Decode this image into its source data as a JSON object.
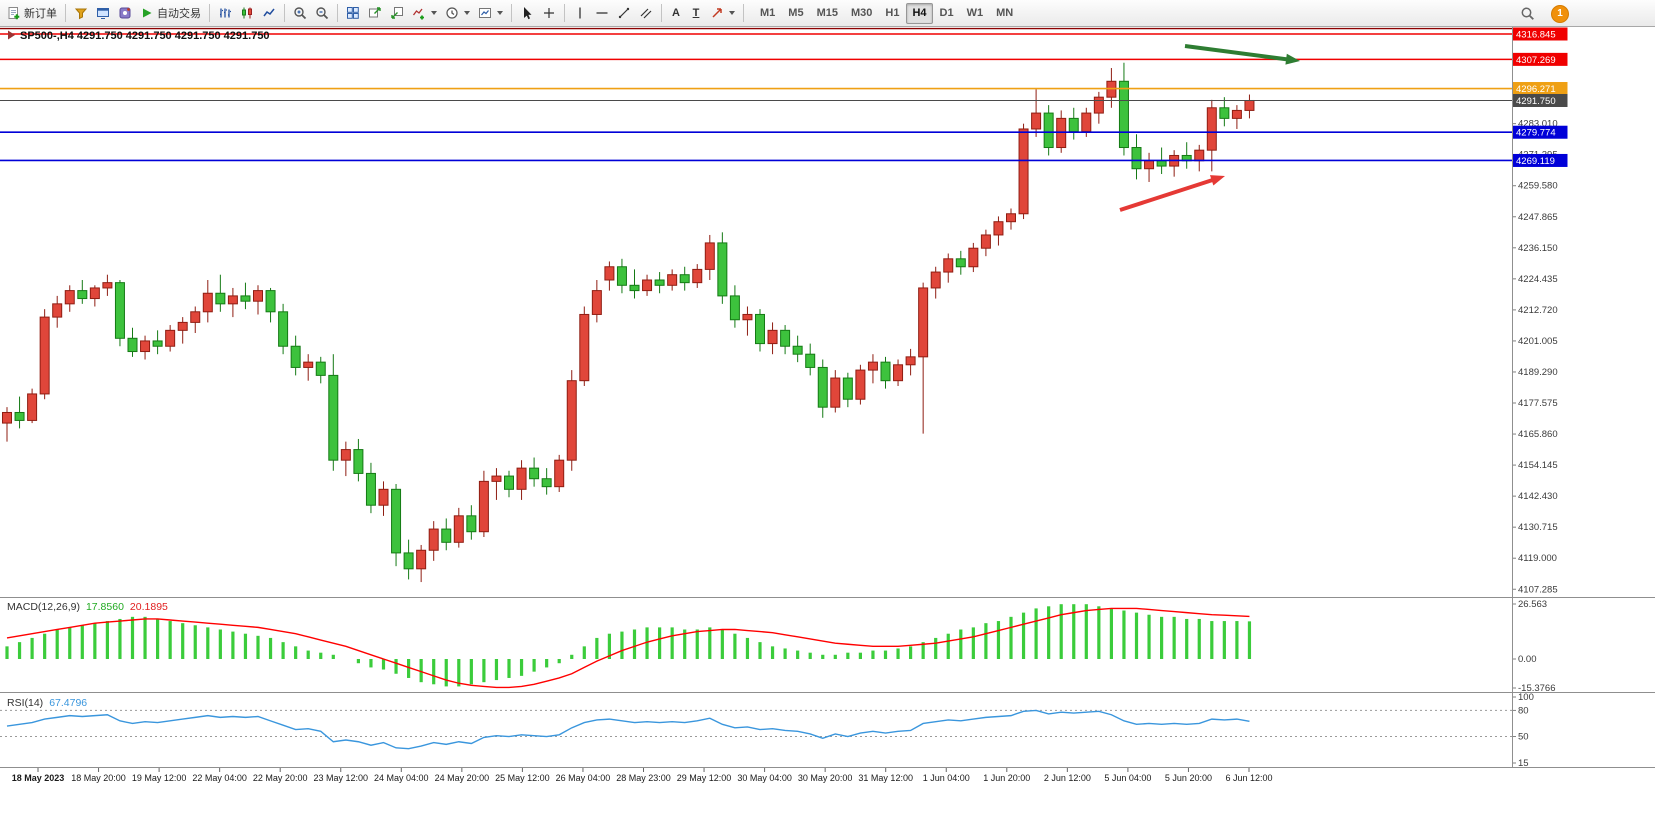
{
  "toolbar": {
    "new_order": "新订单",
    "autotrade": "自动交易",
    "timeframes": [
      "M1",
      "M5",
      "M15",
      "M30",
      "H1",
      "H4",
      "D1",
      "W1",
      "MN"
    ],
    "active_timeframe": "H4",
    "notification_count": "1",
    "icons": {
      "text_tool": "A",
      "label_tool": "T"
    }
  },
  "symbol_bar": {
    "text": "SP500-,H4 4291.750 4291.750 4291.750 4291.750"
  },
  "indicators": {
    "macd": {
      "label": "MACD(12,26,9)",
      "value_main": "17.8560",
      "value_signal": "20.1895"
    },
    "rsi": {
      "label": "RSI(14)",
      "value": "67.4796"
    }
  },
  "chart_data": {
    "type": "candlestick",
    "symbol": "SP500-",
    "timeframe": "H4",
    "ohlc_display": [
      "4291.750",
      "4291.750",
      "4291.750",
      "4291.750"
    ],
    "up_color": "#e0463a",
    "down_color": "#3dc23d",
    "price_axis_ticks": [
      "4283.010",
      "4271.295",
      "4259.580",
      "4247.865",
      "4236.150",
      "4224.435",
      "4212.720",
      "4201.005",
      "4189.290",
      "4177.575",
      "4165.860",
      "4154.145",
      "4142.430",
      "4130.715",
      "4119.000",
      "4107.285"
    ],
    "levels": [
      {
        "price": 4318.9,
        "color": "#8b0000",
        "label": null,
        "width": 1.4
      },
      {
        "price": 4316.845,
        "color": "#f00000",
        "label": "4316.845",
        "width": 1.4
      },
      {
        "price": 4307.269,
        "color": "#f00000",
        "label": "4307.269",
        "width": 1.4
      },
      {
        "price": 4296.271,
        "color": "#efa014",
        "label": "4296.271",
        "width": 1.6
      },
      {
        "price": 4291.75,
        "color": "#4a4a4a",
        "label": "4291.750",
        "width": 1.0
      },
      {
        "price": 4279.774,
        "color": "#0000d8",
        "label": "4279.774",
        "width": 1.6
      },
      {
        "price": 4269.119,
        "color": "#0000d8",
        "label": "4269.119",
        "width": 1.6
      }
    ],
    "candles": [
      [
        4170,
        4176,
        4163,
        4174
      ],
      [
        4174,
        4180,
        4168,
        4171
      ],
      [
        4171,
        4183,
        4170,
        4181
      ],
      [
        4181,
        4213,
        4179,
        4210
      ],
      [
        4210,
        4218,
        4206,
        4215
      ],
      [
        4215,
        4222,
        4212,
        4220
      ],
      [
        4220,
        4224,
        4215,
        4217
      ],
      [
        4217,
        4222,
        4214,
        4221
      ],
      [
        4221,
        4226,
        4218,
        4223
      ],
      [
        4223,
        4224,
        4199,
        4202
      ],
      [
        4202,
        4206,
        4195,
        4197
      ],
      [
        4197,
        4203,
        4194,
        4201
      ],
      [
        4201,
        4205,
        4196,
        4199
      ],
      [
        4199,
        4207,
        4197,
        4205
      ],
      [
        4205,
        4210,
        4200,
        4208
      ],
      [
        4208,
        4214,
        4204,
        4212
      ],
      [
        4212,
        4224,
        4208,
        4219
      ],
      [
        4219,
        4226,
        4212,
        4215
      ],
      [
        4215,
        4221,
        4210,
        4218
      ],
      [
        4218,
        4223,
        4213,
        4216
      ],
      [
        4216,
        4222,
        4211,
        4220
      ],
      [
        4220,
        4221,
        4208,
        4212
      ],
      [
        4212,
        4215,
        4196,
        4199
      ],
      [
        4199,
        4203,
        4188,
        4191
      ],
      [
        4191,
        4196,
        4186,
        4193
      ],
      [
        4193,
        4195,
        4185,
        4188
      ],
      [
        4188,
        4196,
        4152,
        4156
      ],
      [
        4156,
        4163,
        4150,
        4160
      ],
      [
        4160,
        4164,
        4148,
        4151
      ],
      [
        4151,
        4155,
        4136,
        4139
      ],
      [
        4139,
        4148,
        4135,
        4145
      ],
      [
        4145,
        4147,
        4116,
        4121
      ],
      [
        4121,
        4126,
        4111,
        4115
      ],
      [
        4115,
        4124,
        4110,
        4122
      ],
      [
        4122,
        4133,
        4118,
        4130
      ],
      [
        4130,
        4134,
        4122,
        4125
      ],
      [
        4125,
        4138,
        4123,
        4135
      ],
      [
        4135,
        4139,
        4126,
        4129
      ],
      [
        4129,
        4152,
        4127,
        4148
      ],
      [
        4148,
        4153,
        4141,
        4150
      ],
      [
        4150,
        4152,
        4142,
        4145
      ],
      [
        4145,
        4156,
        4141,
        4153
      ],
      [
        4153,
        4157,
        4146,
        4149
      ],
      [
        4149,
        4153,
        4143,
        4146
      ],
      [
        4146,
        4158,
        4144,
        4156
      ],
      [
        4156,
        4190,
        4152,
        4186
      ],
      [
        4186,
        4214,
        4184,
        4211
      ],
      [
        4211,
        4224,
        4208,
        4220
      ],
      [
        4224,
        4231,
        4220,
        4229
      ],
      [
        4229,
        4232,
        4219,
        4222
      ],
      [
        4222,
        4228,
        4217,
        4220
      ],
      [
        4220,
        4226,
        4218,
        4224
      ],
      [
        4224,
        4227,
        4219,
        4222
      ],
      [
        4222,
        4228,
        4220,
        4226
      ],
      [
        4226,
        4229,
        4220,
        4223
      ],
      [
        4223,
        4230,
        4221,
        4228
      ],
      [
        4228,
        4241,
        4224,
        4238
      ],
      [
        4238,
        4242,
        4215,
        4218
      ],
      [
        4218,
        4222,
        4206,
        4209
      ],
      [
        4209,
        4214,
        4203,
        4211
      ],
      [
        4211,
        4213,
        4197,
        4200
      ],
      [
        4200,
        4208,
        4196,
        4205
      ],
      [
        4205,
        4207,
        4196,
        4199
      ],
      [
        4199,
        4203,
        4193,
        4196
      ],
      [
        4196,
        4200,
        4188,
        4191
      ],
      [
        4191,
        4194,
        4172,
        4176
      ],
      [
        4176,
        4190,
        4174,
        4187
      ],
      [
        4187,
        4189,
        4176,
        4179
      ],
      [
        4179,
        4192,
        4177,
        4190
      ],
      [
        4190,
        4196,
        4185,
        4193
      ],
      [
        4193,
        4195,
        4183,
        4186
      ],
      [
        4186,
        4194,
        4184,
        4192
      ],
      [
        4192,
        4198,
        4188,
        4195
      ],
      [
        4195,
        4223,
        4166,
        4221
      ],
      [
        4221,
        4229,
        4217,
        4227
      ],
      [
        4227,
        4234,
        4223,
        4232
      ],
      [
        4232,
        4235,
        4226,
        4229
      ],
      [
        4229,
        4238,
        4227,
        4236
      ],
      [
        4236,
        4243,
        4233,
        4241
      ],
      [
        4241,
        4248,
        4237,
        4246
      ],
      [
        4246,
        4251,
        4243,
        4249
      ],
      [
        4249,
        4283,
        4247,
        4281
      ],
      [
        4281,
        4296,
        4278,
        4287
      ],
      [
        4287,
        4290,
        4271,
        4274
      ],
      [
        4274,
        4288,
        4272,
        4285
      ],
      [
        4285,
        4289,
        4277,
        4280
      ],
      [
        4280,
        4289,
        4278,
        4287
      ],
      [
        4287,
        4295,
        4283,
        4293
      ],
      [
        4293,
        4304,
        4289,
        4299
      ],
      [
        4299,
        4306,
        4271,
        4274
      ],
      [
        4274,
        4279,
        4262,
        4266
      ],
      [
        4266,
        4272,
        4261,
        4269
      ],
      [
        4269,
        4274,
        4264,
        4267
      ],
      [
        4267,
        4273,
        4263,
        4271
      ],
      [
        4271,
        4276,
        4266,
        4269
      ],
      [
        4269,
        4275,
        4265,
        4273
      ],
      [
        4273,
        4292,
        4265,
        4289
      ],
      [
        4289,
        4293,
        4282,
        4285
      ],
      [
        4285,
        4290,
        4281,
        4288
      ],
      [
        4288,
        4294,
        4285,
        4291.75
      ]
    ],
    "macd": {
      "label": "MACD(12,26,9)",
      "hist_color": "#3bcc3b",
      "signal_color": "#ff0000",
      "axis_ticks": [
        "26.563",
        "0.00",
        "-15.3766"
      ],
      "histogram": [
        6,
        8,
        10,
        12,
        14,
        15,
        16,
        17,
        18,
        19,
        20,
        20,
        19,
        18,
        17,
        16,
        15,
        14,
        13,
        12,
        11,
        10,
        8,
        6,
        4,
        3,
        2,
        0,
        -2,
        -4,
        -5,
        -7,
        -9,
        -11,
        -12,
        -13,
        -13,
        -12,
        -11,
        -10,
        -9,
        -8,
        -6,
        -4,
        -2,
        2,
        6,
        10,
        12,
        13,
        14,
        15,
        15,
        15,
        14,
        14,
        15,
        14,
        12,
        10,
        8,
        6,
        5,
        4,
        3,
        2,
        2,
        3,
        3,
        4,
        4,
        5,
        6,
        8,
        10,
        12,
        14,
        15,
        17,
        18,
        20,
        22,
        24,
        25,
        26,
        26,
        26,
        25,
        24,
        23,
        22,
        21,
        20,
        20,
        19,
        19,
        18,
        18,
        18,
        17.86
      ],
      "signal": [
        10,
        11,
        12,
        13,
        14,
        15,
        16,
        17,
        17.5,
        18,
        18.5,
        19,
        19,
        18.5,
        18,
        17.5,
        17,
        16.5,
        16,
        15.5,
        15,
        14,
        13,
        12,
        10.5,
        9,
        7.5,
        6,
        4,
        2,
        0,
        -2,
        -4,
        -6,
        -8,
        -10,
        -11.5,
        -12.5,
        -13,
        -13.5,
        -13.5,
        -13,
        -12,
        -10.5,
        -9,
        -7,
        -4,
        -1,
        1.5,
        4,
        6,
        8,
        9.5,
        11,
        12,
        13,
        13.5,
        14,
        14,
        13.5,
        13,
        12.5,
        11.5,
        10.5,
        9.5,
        8.5,
        7.5,
        7,
        6.5,
        6,
        6,
        6,
        6.5,
        7,
        7.5,
        8.5,
        9.5,
        10.5,
        12,
        13.5,
        15,
        16.5,
        18,
        19.5,
        21,
        22,
        23,
        23.5,
        24,
        24,
        24,
        23.5,
        23,
        22.5,
        22,
        21.5,
        21,
        20.8,
        20.5,
        20.19
      ]
    },
    "rsi": {
      "label": "RSI(14)",
      "line_color": "#3a96dd",
      "levels": [
        80,
        50
      ],
      "axis_ticks": [
        "100",
        "80",
        "50",
        "15"
      ],
      "values": [
        62,
        64,
        66,
        70,
        72,
        74,
        73,
        74,
        75,
        68,
        65,
        67,
        66,
        68,
        70,
        72,
        74,
        72,
        73,
        72,
        73,
        68,
        63,
        58,
        59,
        56,
        44,
        46,
        44,
        40,
        43,
        37,
        36,
        39,
        43,
        41,
        44,
        42,
        49,
        51,
        50,
        52,
        51,
        50,
        52,
        60,
        66,
        69,
        70,
        68,
        66,
        67,
        66,
        67,
        66,
        68,
        71,
        64,
        60,
        61,
        58,
        59,
        57,
        56,
        53,
        48,
        53,
        50,
        54,
        56,
        54,
        56,
        57,
        65,
        67,
        69,
        68,
        70,
        72,
        73,
        74,
        79,
        80,
        76,
        78,
        77,
        78,
        79,
        75,
        68,
        64,
        65,
        64,
        65,
        64,
        65,
        70,
        69,
        70,
        67.48
      ]
    },
    "time_axis": [
      "18 May 2023",
      "18 May 20:00",
      "19 May 12:00",
      "22 May 04:00",
      "22 May 20:00",
      "23 May 12:00",
      "24 May 04:00",
      "24 May 20:00",
      "25 May 12:00",
      "26 May 04:00",
      "28 May 23:00",
      "29 May 12:00",
      "30 May 04:00",
      "30 May 20:00",
      "31 May 12:00",
      "1 Jun 04:00",
      "1 Jun 20:00",
      "2 Jun 12:00",
      "5 Jun 04:00",
      "5 Jun 20:00",
      "6 Jun 12:00"
    ],
    "annotations": [
      {
        "type": "arrow",
        "name": "green-arrow",
        "color": "#2e7d32",
        "from": [
          1185,
          46
        ],
        "to": [
          1300,
          61
        ]
      },
      {
        "type": "arrow",
        "name": "red-arrow",
        "color": "#e53935",
        "from": [
          1120,
          210
        ],
        "to": [
          1225,
          176
        ]
      }
    ]
  }
}
